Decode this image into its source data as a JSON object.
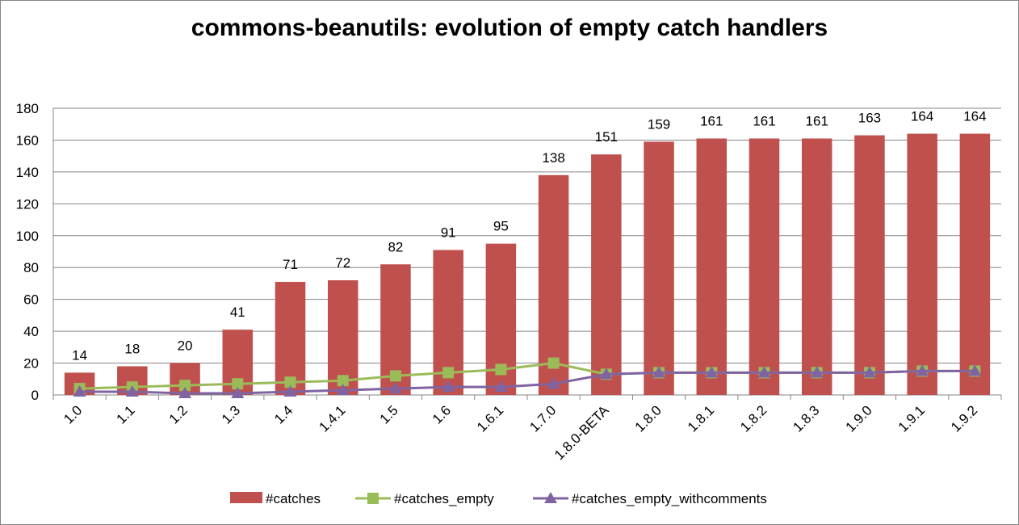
{
  "chart_data": {
    "type": "bar",
    "title": "commons-beanutils: evolution of empty catch handlers",
    "categories": [
      "1.0",
      "1.1",
      "1.2",
      "1.3",
      "1.4",
      "1.4.1",
      "1.5",
      "1.6",
      "1.6.1",
      "1.7.0",
      "1.8.0-BETA",
      "1.8.0",
      "1.8.1",
      "1.8.2",
      "1.8.3",
      "1.9.0",
      "1.9.1",
      "1.9.2"
    ],
    "ylim": [
      0,
      180
    ],
    "yticks": [
      0,
      20,
      40,
      60,
      80,
      100,
      120,
      140,
      160,
      180
    ],
    "grid": true,
    "legend_position": "bottom",
    "series": [
      {
        "name": "#catches",
        "kind": "bar",
        "color": "#C0504D",
        "show_labels": true,
        "values": [
          14,
          18,
          20,
          41,
          71,
          72,
          82,
          91,
          95,
          138,
          151,
          159,
          161,
          161,
          161,
          163,
          164,
          164
        ]
      },
      {
        "name": "#catches_empty",
        "kind": "line",
        "marker": "square",
        "color": "#9BBB59",
        "values": [
          4,
          5,
          6,
          7,
          8,
          9,
          12,
          14,
          16,
          20,
          13,
          14,
          14,
          14,
          14,
          14,
          15,
          15
        ]
      },
      {
        "name": "#catches_empty_withcomments",
        "kind": "line",
        "marker": "triangle",
        "color": "#8064A2",
        "values": [
          2,
          2,
          1,
          1,
          2,
          3,
          4,
          5,
          5,
          7,
          13,
          14,
          14,
          14,
          14,
          14,
          15,
          15
        ]
      }
    ]
  }
}
